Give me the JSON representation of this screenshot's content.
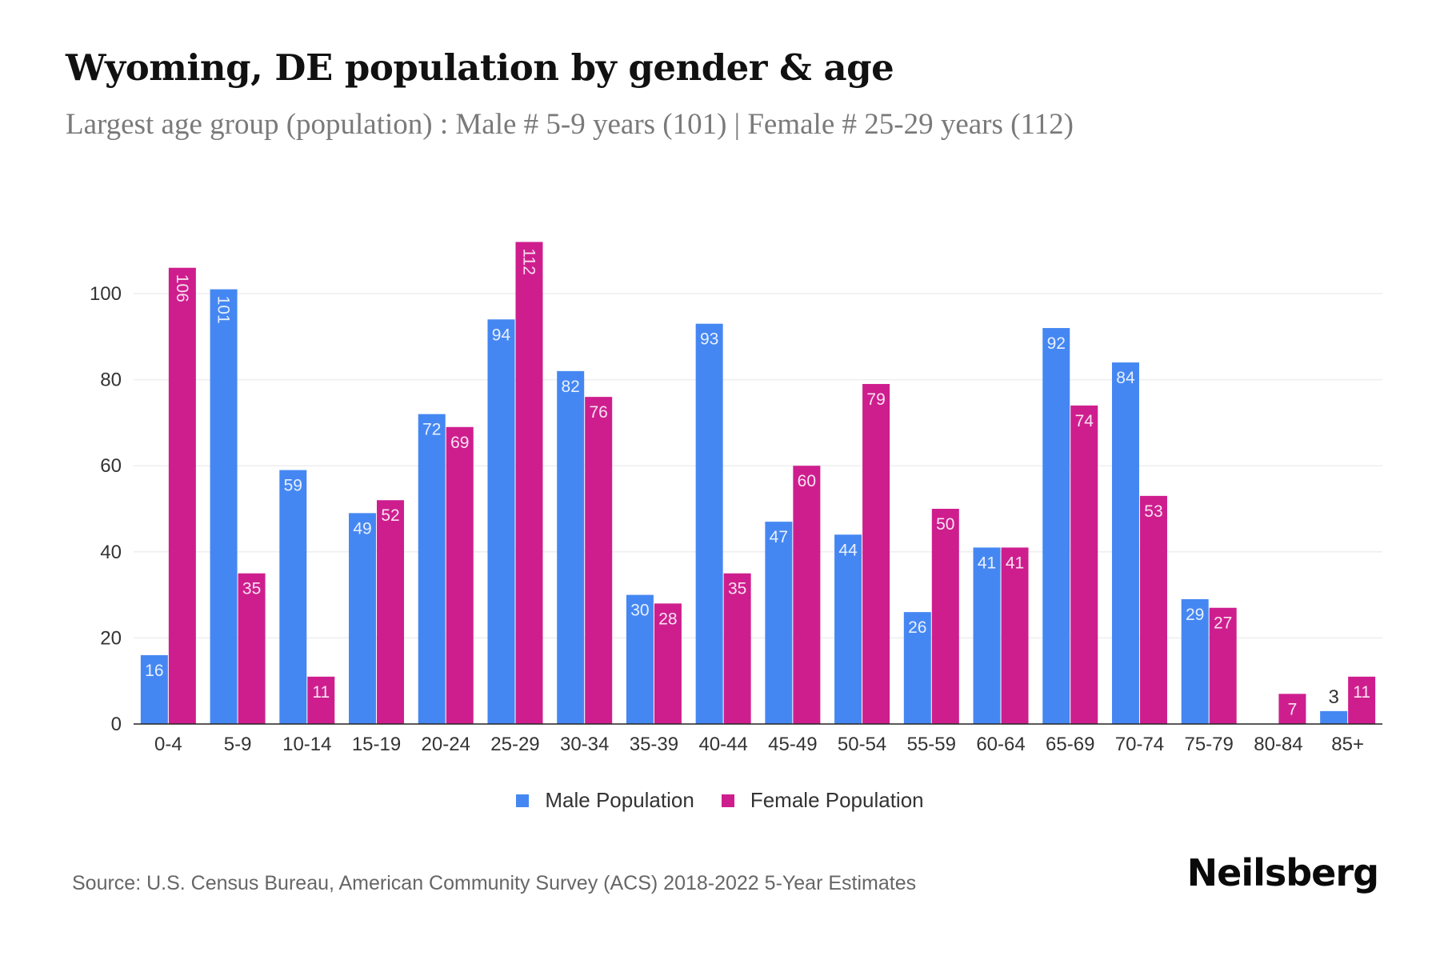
{
  "header": {
    "title": "Wyoming, DE population by gender & age",
    "subtitle": "Largest age group (population) : Male # 5-9 years (101) | Female # 25-29 years (112)"
  },
  "legend": {
    "male_label": "Male Population",
    "female_label": "Female Population"
  },
  "footer": {
    "source": "Source: U.S. Census Bureau, American Community Survey (ACS) 2018-2022 5-Year Estimates",
    "brand": "Neilsberg"
  },
  "colors": {
    "male": "#4587F2",
    "female": "#CE1E8E",
    "grid": "#EEEEEE",
    "axis": "#222222"
  },
  "chart_data": {
    "type": "bar",
    "title": "Wyoming, DE population by gender & age",
    "subtitle": "Largest age group (population) : Male # 5-9 years (101) | Female # 25-29 years (112)",
    "xlabel": "",
    "ylabel": "",
    "ylim": [
      0,
      115
    ],
    "yticks": [
      0,
      20,
      40,
      60,
      80,
      100
    ],
    "grid": true,
    "legend_position": "bottom-center",
    "categories": [
      "0-4",
      "5-9",
      "10-14",
      "15-19",
      "20-24",
      "25-29",
      "30-34",
      "35-39",
      "40-44",
      "45-49",
      "50-54",
      "55-59",
      "60-64",
      "65-69",
      "70-74",
      "75-79",
      "80-84",
      "85+"
    ],
    "series": [
      {
        "name": "Male Population",
        "color": "#4587F2",
        "values": [
          16,
          101,
          59,
          49,
          72,
          94,
          82,
          30,
          93,
          47,
          44,
          26,
          41,
          92,
          84,
          29,
          0,
          3
        ]
      },
      {
        "name": "Female Population",
        "color": "#CE1E8E",
        "values": [
          106,
          35,
          11,
          52,
          69,
          112,
          76,
          28,
          35,
          60,
          79,
          50,
          41,
          74,
          53,
          27,
          7,
          11
        ]
      }
    ]
  }
}
